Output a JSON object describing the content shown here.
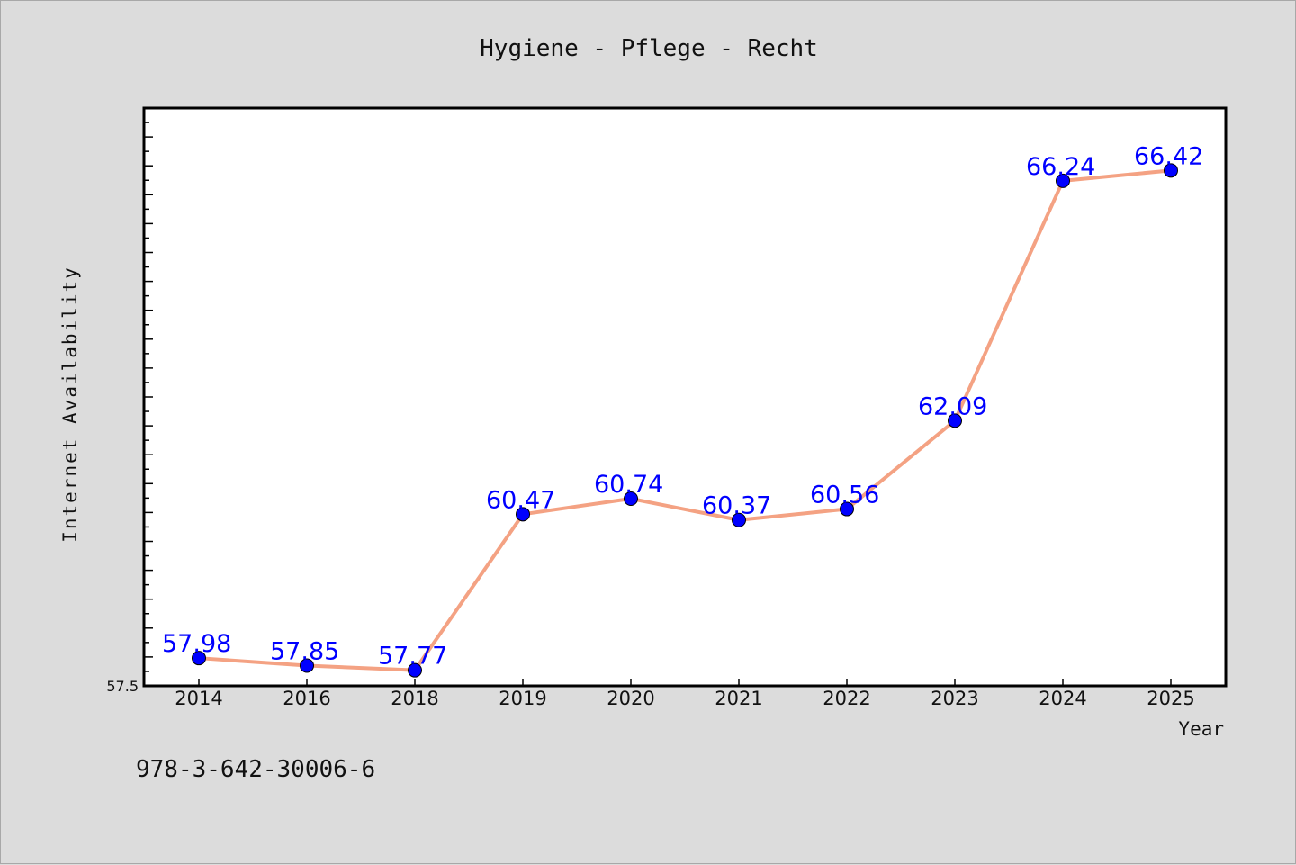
{
  "chart_data": {
    "type": "line",
    "title": "Hygiene - Pflege - Recht",
    "xlabel": "Year",
    "ylabel": "Internet Availability",
    "categories": [
      "2014",
      "2016",
      "2018",
      "2019",
      "2020",
      "2021",
      "2022",
      "2023",
      "2024",
      "2025"
    ],
    "series": [
      {
        "values": [
          57.98,
          57.85,
          57.77,
          60.47,
          60.74,
          60.37,
          60.56,
          62.09,
          66.24,
          66.42
        ],
        "labels": [
          "57.98",
          "57.85",
          "57.77",
          "60.47",
          "60.74",
          "60.37",
          "60.56",
          "62.09",
          "66.24",
          "66.42"
        ]
      }
    ],
    "ylim": [
      57.5,
      67.5
    ],
    "y_tick_labels": [
      "57.5"
    ],
    "grid": false,
    "line_color": "#f4a283",
    "marker_color": "#0000ff",
    "label_color": "#0000ff",
    "footer": "978-3-642-30006-6"
  }
}
